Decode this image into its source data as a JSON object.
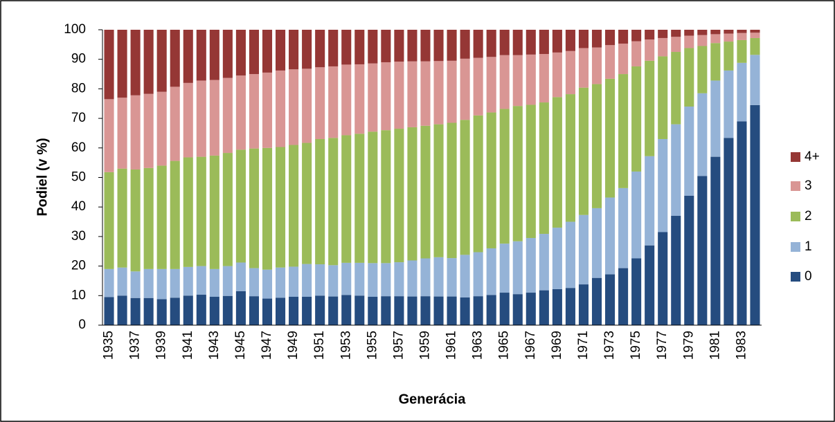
{
  "chart_data": {
    "type": "stacked_bar",
    "x_label": "Generácia",
    "y_label": "Podiel (v %)",
    "categories": [
      "1935",
      null,
      "1937",
      null,
      "1939",
      null,
      "1941",
      null,
      "1943",
      null,
      "1945",
      null,
      "1947",
      null,
      "1949",
      null,
      "1951",
      null,
      "1953",
      null,
      "1955",
      null,
      "1957",
      null,
      "1959",
      null,
      "1961",
      null,
      "1963",
      null,
      "1965",
      null,
      "1967",
      null,
      "1969",
      null,
      "1971",
      null,
      "1973",
      null,
      "1975",
      null,
      "1977",
      null,
      "1979",
      null,
      "1981",
      null,
      "1983",
      null
    ],
    "series": [
      {
        "name": "0",
        "color": "#254c7f",
        "values": [
          9.5,
          10,
          9.2,
          9.2,
          8.8,
          9.3,
          10,
          10.3,
          9.6,
          9.9,
          11.5,
          9.8,
          9.0,
          9.3,
          9.6,
          9.6,
          10,
          9.7,
          10.2,
          10,
          9.6,
          9.8,
          9.8,
          9.7,
          9.8,
          9.7,
          9.7,
          9.4,
          9.8,
          10.2,
          11,
          10.5,
          11,
          11.8,
          12.2,
          12.6,
          13.8,
          16,
          17.2,
          19.3,
          22.6,
          27,
          31.5,
          37,
          43.8,
          50.5,
          57,
          63.4,
          69,
          74.5
        ]
      },
      {
        "name": "1",
        "color": "#95b3d7",
        "values": [
          9.5,
          9.5,
          9.0,
          9.8,
          10.2,
          9.7,
          9.7,
          9.7,
          9.4,
          10.1,
          9.7,
          9.5,
          9.8,
          10.2,
          10.2,
          11.1,
          10.6,
          10.6,
          10.9,
          11.1,
          11.4,
          11.2,
          11.5,
          12.2,
          12.8,
          13.3,
          13.0,
          14.4,
          14.9,
          15.8,
          16.6,
          17.9,
          18.5,
          19.1,
          20.8,
          22.4,
          23.5,
          23.6,
          26.0,
          27.1,
          29.4,
          30.2,
          31.5,
          31.0,
          30.2,
          28.0,
          25.8,
          22.8,
          19.8,
          17.0
        ]
      },
      {
        "name": "2",
        "color": "#9bbb59",
        "values": [
          32.8,
          33.5,
          34.5,
          34.2,
          35.0,
          36.6,
          37.1,
          37.0,
          38.4,
          38.3,
          38.2,
          40.5,
          41.2,
          40.8,
          41.2,
          41.0,
          42.4,
          43.1,
          43.2,
          43.7,
          44.5,
          45.0,
          45.2,
          45.1,
          44.9,
          45.0,
          45.8,
          45.7,
          46.3,
          46.0,
          45.6,
          45.8,
          45.1,
          44.5,
          44.2,
          43.2,
          43.1,
          42.0,
          40.2,
          38.6,
          35.6,
          32.3,
          28.0,
          24.5,
          19.8,
          16.0,
          12.7,
          9.8,
          7.7,
          5.7
        ]
      },
      {
        "name": "3",
        "color": "#d99694",
        "values": [
          24.7,
          24.0,
          25.1,
          25.1,
          25.0,
          25.1,
          25.2,
          25.8,
          25.6,
          25.4,
          25.1,
          25.2,
          25.5,
          25.9,
          25.6,
          25.1,
          24.3,
          24.2,
          23.9,
          23.5,
          23.1,
          23.0,
          22.7,
          22.3,
          21.8,
          21.4,
          21.0,
          20.7,
          19.5,
          18.8,
          18.2,
          17.2,
          17.0,
          16.4,
          15.1,
          14.6,
          13.4,
          12.4,
          11.4,
          10.3,
          8.5,
          7.2,
          6.2,
          5.1,
          4.2,
          3.7,
          3.0,
          2.7,
          2.4,
          1.8
        ]
      },
      {
        "name": "4+",
        "color": "#953735",
        "values": [
          23.5,
          23.0,
          22.2,
          21.7,
          21.0,
          19.3,
          18.0,
          17.2,
          17.0,
          16.3,
          15.5,
          15.0,
          14.5,
          13.8,
          13.4,
          13.2,
          12.7,
          12.4,
          11.8,
          11.7,
          11.4,
          11.0,
          10.8,
          10.7,
          10.7,
          10.6,
          10.5,
          9.8,
          9.5,
          9.2,
          8.6,
          8.6,
          8.4,
          8.2,
          7.7,
          7.2,
          6.2,
          6.0,
          5.2,
          4.7,
          3.9,
          3.3,
          2.8,
          2.4,
          2.0,
          1.8,
          1.5,
          1.3,
          1.1,
          1.0
        ]
      }
    ],
    "ylim": [
      0,
      100
    ],
    "yticks": [
      0,
      10,
      20,
      30,
      40,
      50,
      60,
      70,
      80,
      90,
      100
    ],
    "grid": false,
    "legend": "right"
  }
}
